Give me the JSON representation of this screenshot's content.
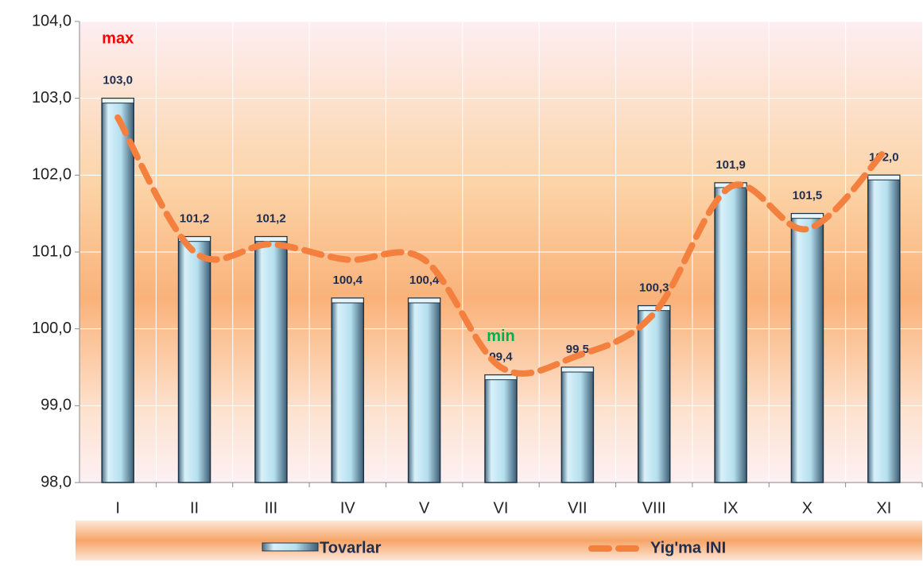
{
  "chart_data": {
    "type": "bar",
    "categories": [
      "I",
      "II",
      "III",
      "IV",
      "V",
      "VI",
      "VII",
      "VIII",
      "IX",
      "X",
      "XI"
    ],
    "series": [
      {
        "name": "Tovarlar",
        "type": "bar",
        "color": "#b8e2f0",
        "values": [
          103.0,
          101.2,
          101.2,
          100.4,
          100.4,
          99.4,
          99.5,
          100.3,
          101.9,
          101.5,
          102.0
        ],
        "value_labels": [
          "103,0",
          "101,2",
          "101,2",
          "100,4",
          "100,4",
          "99,4",
          "99,5",
          "100,3",
          "101,9",
          "101,5",
          "102,0"
        ]
      },
      {
        "name": "Yig'ma INI",
        "type": "line",
        "color": "#f4803f",
        "values": [
          102.75,
          101.0,
          101.1,
          100.9,
          100.9,
          99.5,
          99.65,
          100.2,
          101.85,
          101.3,
          102.3
        ]
      }
    ],
    "ylim": [
      98,
      104
    ],
    "yticks": [
      {
        "value": 98,
        "label": "98,0"
      },
      {
        "value": 99,
        "label": "99,0"
      },
      {
        "value": 100,
        "label": "100,0"
      },
      {
        "value": 101,
        "label": "101,0"
      },
      {
        "value": 102,
        "label": "102,0"
      },
      {
        "value": 103,
        "label": "103,0"
      },
      {
        "value": 104,
        "label": "104,0"
      }
    ],
    "grid": true,
    "legend": "bottom",
    "annotations": [
      {
        "text": "max",
        "category": "I",
        "color": "#ff0000"
      },
      {
        "text": "min",
        "category": "VI",
        "color": "#00b050"
      }
    ]
  }
}
